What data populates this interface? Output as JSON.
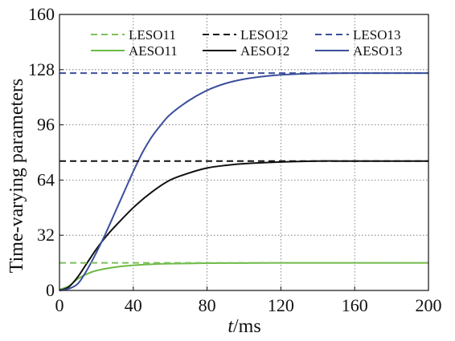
{
  "chart_data": {
    "type": "line",
    "xlabel_italic": "t",
    "xlabel_rest": "/ms",
    "ylabel": "Time-varying parameters",
    "xlim": [
      0,
      200
    ],
    "ylim": [
      0,
      160
    ],
    "xticks": [
      0,
      40,
      80,
      120,
      160,
      200
    ],
    "yticks": [
      0,
      32,
      64,
      96,
      128,
      160
    ],
    "grid": true,
    "legend_position": "top",
    "series": [
      {
        "name": "LESO11",
        "style": "dashed",
        "color": "#7dc05a",
        "x": [
          0,
          200
        ],
        "y": [
          16,
          16
        ]
      },
      {
        "name": "LESO12",
        "style": "dashed",
        "color": "#111111",
        "x": [
          0,
          200
        ],
        "y": [
          75,
          75
        ]
      },
      {
        "name": "LESO13",
        "style": "dashed",
        "color": "#3b4f9c",
        "x": [
          0,
          200
        ],
        "y": [
          126,
          126
        ]
      },
      {
        "name": "AESO11",
        "style": "solid",
        "color": "#6cbb45",
        "x": [
          0,
          5,
          10,
          15,
          20,
          30,
          40,
          50,
          60,
          80,
          100,
          120,
          160,
          200
        ],
        "y": [
          0.5,
          2.5,
          6.8,
          9.6,
          11.5,
          13.5,
          14.6,
          15.2,
          15.5,
          15.8,
          15.9,
          16.0,
          16.0,
          16.0
        ]
      },
      {
        "name": "AESO12",
        "style": "solid",
        "color": "#111111",
        "x": [
          0,
          5,
          10,
          15,
          20,
          25,
          30,
          40,
          50,
          60,
          70,
          80,
          90,
          100,
          120,
          140,
          160,
          200
        ],
        "y": [
          0,
          2,
          8,
          16,
          24,
          31,
          37,
          48,
          57,
          64,
          68,
          71,
          72.5,
          73.5,
          74.5,
          75,
          75,
          75
        ]
      },
      {
        "name": "AESO13",
        "style": "solid",
        "color": "#3b4f9c",
        "x": [
          0,
          5,
          10,
          15,
          20,
          25,
          30,
          35,
          40,
          45,
          50,
          55,
          60,
          70,
          80,
          90,
          100,
          110,
          120,
          140,
          160,
          200
        ],
        "y": [
          0,
          1,
          4,
          12,
          22,
          33,
          45,
          57,
          69,
          80,
          89,
          96,
          102,
          110,
          116,
          120,
          122.5,
          124,
          125,
          125.8,
          126,
          126
        ]
      }
    ]
  }
}
